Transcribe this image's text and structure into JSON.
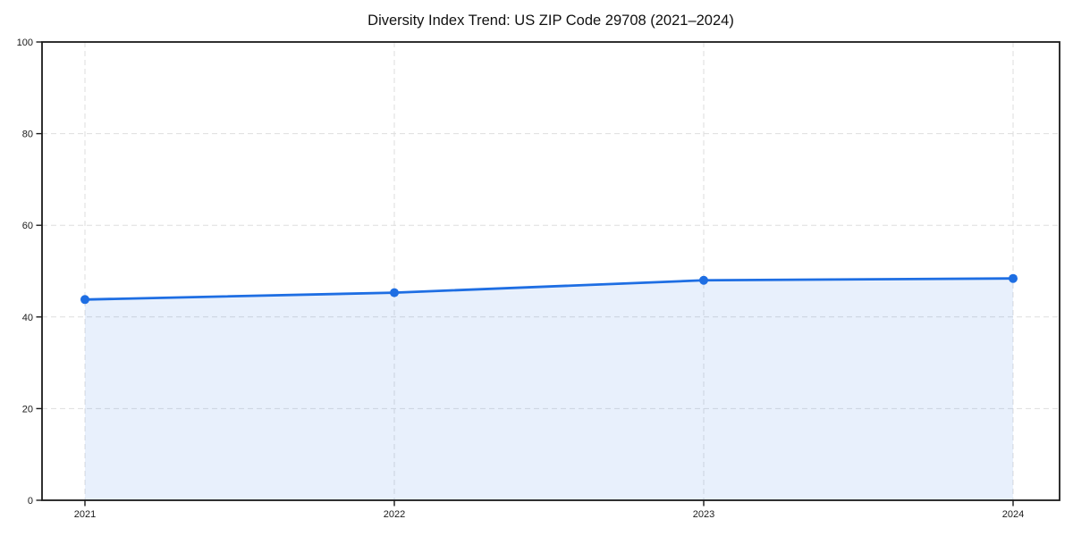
{
  "page": {
    "background": "#ffffff"
  },
  "chart_data": {
    "type": "line",
    "title": "Diversity Index Trend: US ZIP Code 29708 (2021–2024)",
    "x": [
      "2021",
      "2022",
      "2023",
      "2024"
    ],
    "series": [
      {
        "name": "Diversity Index",
        "values": [
          43.8,
          45.3,
          48.0,
          48.4
        ]
      }
    ],
    "xlabel": "",
    "ylabel": "",
    "ylim": [
      0,
      100
    ],
    "yticks": [
      0,
      20,
      40,
      60,
      80,
      100
    ],
    "area_fill": true,
    "markers": "circle",
    "grid": "dashed",
    "legend": "none",
    "colors": {
      "line": "#1e6ee3",
      "fill": "#1e6ee3",
      "fill_opacity": 0.1,
      "grid": "#dedede",
      "axis": "#1a1a1a",
      "tick_text": "#1a1a1a",
      "title_text": "#111111",
      "background": "#ffffff"
    }
  }
}
